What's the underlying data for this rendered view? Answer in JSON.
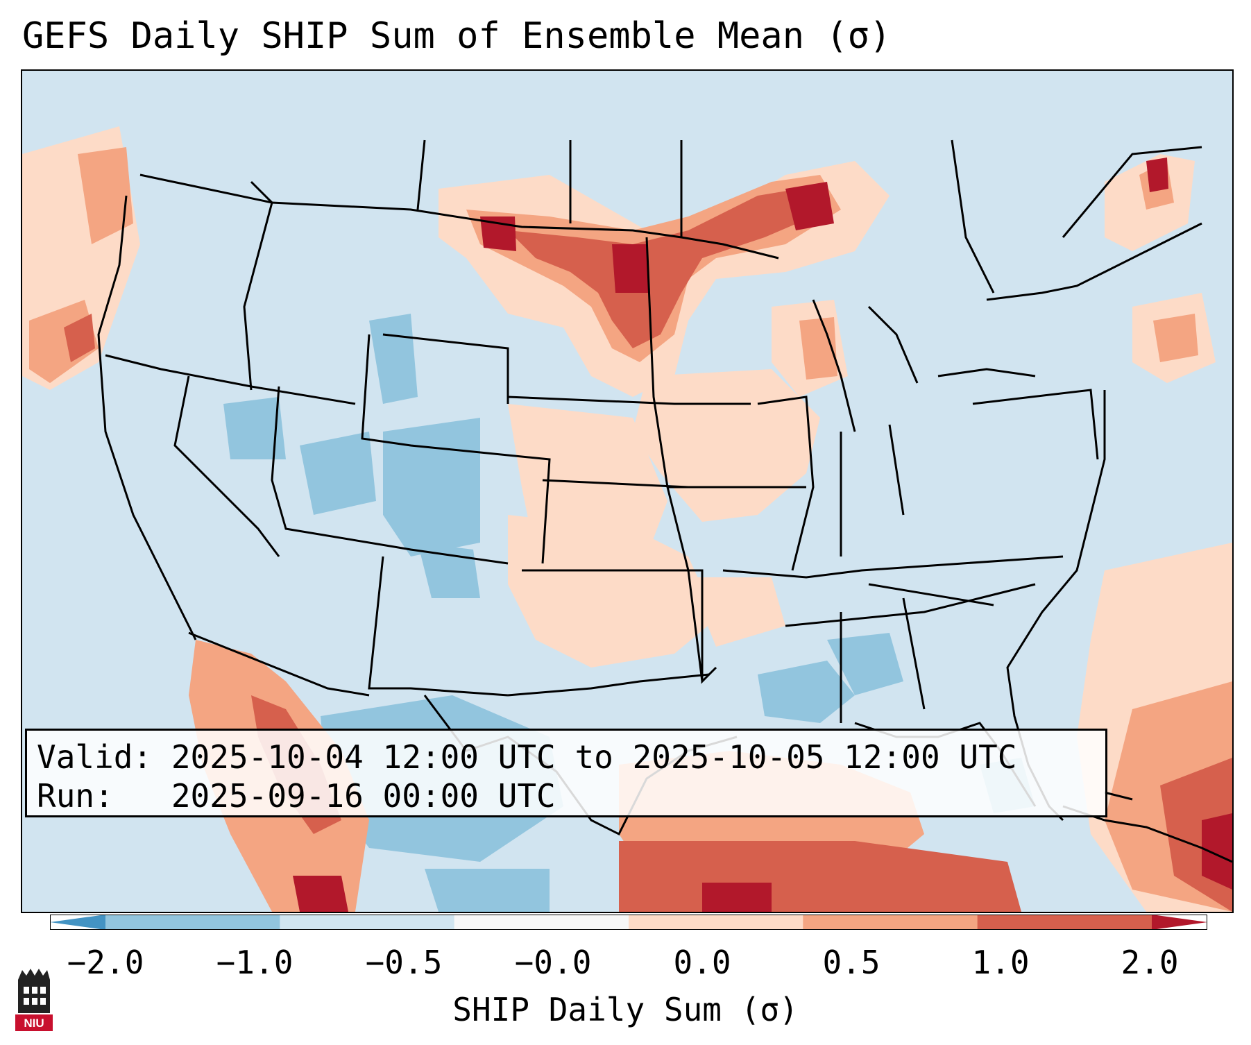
{
  "title": "GEFS Daily SHIP Sum of Ensemble Mean (σ)",
  "info": {
    "valid_line": "Valid: 2025-10-04 12:00 UTC to 2025-10-05 12:00 UTC",
    "run_line": "Run:   2025-09-16 00:00 UTC"
  },
  "colorbar": {
    "label": "SHIP Daily Sum (σ)",
    "ticks": [
      "−2.0",
      "−1.0",
      "−0.5",
      "−0.0",
      "0.0",
      "0.5",
      "1.0",
      "2.0"
    ],
    "colors": [
      "#4393c3",
      "#92c5de",
      "#d1e5f0",
      "#f7f7f7",
      "#fddbc7",
      "#f4a582",
      "#d6604d",
      "#b2182b"
    ],
    "extend": "both"
  },
  "logo": {
    "text": "NIU",
    "icon": "niu-tower-logo"
  }
}
